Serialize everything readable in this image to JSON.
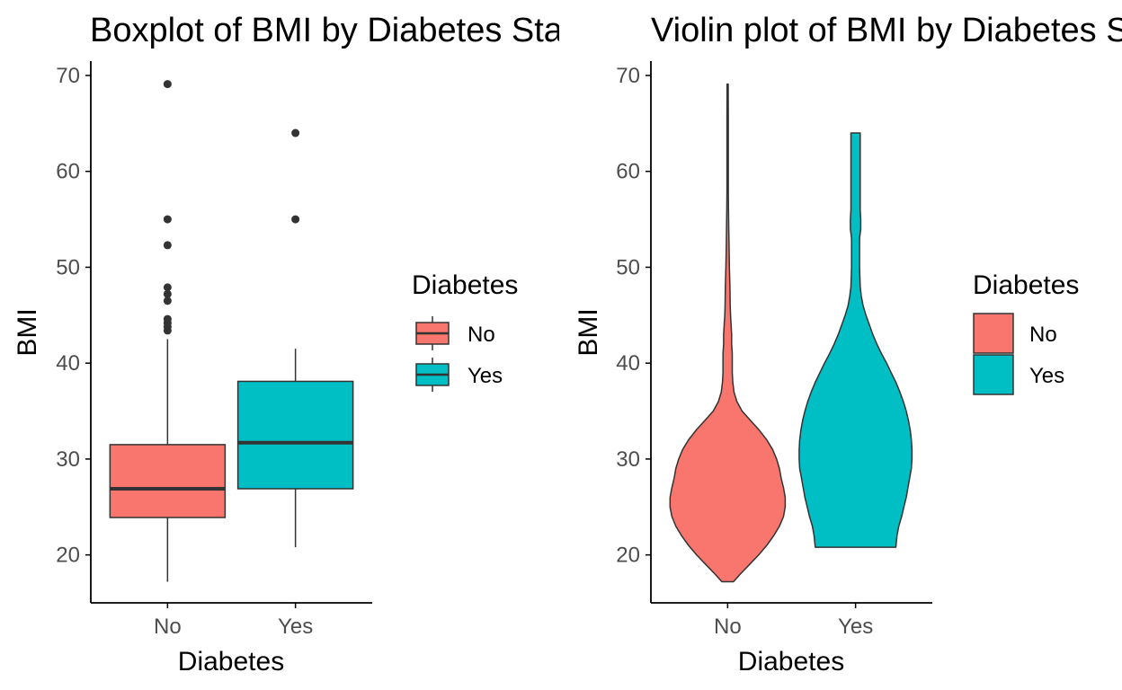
{
  "colors": {
    "no": "#F8766D",
    "yes": "#00BFC4",
    "line": "#333333",
    "axis": "#000000"
  },
  "chart_data": [
    {
      "type": "boxplot",
      "title": "Boxplot of BMI by Diabetes Status",
      "xlabel": "Diabetes",
      "ylabel": "BMI",
      "categories": [
        "No",
        "Yes"
      ],
      "ylim": [
        15,
        71.5
      ],
      "yticks": [
        20,
        30,
        40,
        50,
        60,
        70
      ],
      "grid": false,
      "legend": {
        "title": "Diabetes",
        "entries": [
          "No",
          "Yes"
        ],
        "placement": "right"
      },
      "boxes": [
        {
          "category": "No",
          "lower_whisker": 17.2,
          "q1": 23.9,
          "median": 26.9,
          "q3": 31.5,
          "upper_whisker": 42.5,
          "outliers": [
            43.4,
            43.8,
            44.2,
            44.6,
            46.5,
            47.2,
            47.9,
            52.3,
            55.0,
            69.1
          ]
        },
        {
          "category": "Yes",
          "lower_whisker": 20.8,
          "q1": 26.9,
          "median": 31.7,
          "q3": 38.1,
          "upper_whisker": 41.5,
          "outliers": [
            55.0,
            64.0
          ]
        }
      ]
    },
    {
      "type": "violin",
      "title": "Violin plot of BMI by Diabetes Status",
      "xlabel": "Diabetes",
      "ylabel": "BMI",
      "categories": [
        "No",
        "Yes"
      ],
      "ylim": [
        15,
        71.5
      ],
      "yticks": [
        20,
        30,
        40,
        50,
        60,
        70
      ],
      "grid": false,
      "legend": {
        "title": "Diabetes",
        "entries": [
          "No",
          "Yes"
        ],
        "placement": "right"
      },
      "violins": [
        {
          "category": "No",
          "min": 17.2,
          "max": 69.1,
          "density_profile": [
            [
              17.2,
              0.1
            ],
            [
              18,
              0.22
            ],
            [
              19,
              0.38
            ],
            [
              20,
              0.54
            ],
            [
              21,
              0.68
            ],
            [
              22,
              0.8
            ],
            [
              23,
              0.9
            ],
            [
              24,
              0.97
            ],
            [
              25,
              1.0
            ],
            [
              26,
              1.0
            ],
            [
              27,
              0.97
            ],
            [
              28,
              0.93
            ],
            [
              29,
              0.9
            ],
            [
              30,
              0.85
            ],
            [
              31,
              0.78
            ],
            [
              32,
              0.68
            ],
            [
              33,
              0.55
            ],
            [
              34,
              0.4
            ],
            [
              35,
              0.25
            ],
            [
              36,
              0.16
            ],
            [
              37,
              0.11
            ],
            [
              38,
              0.09
            ],
            [
              39,
              0.08
            ],
            [
              40,
              0.08
            ],
            [
              41,
              0.08
            ],
            [
              42,
              0.07
            ],
            [
              43,
              0.07
            ],
            [
              44,
              0.06
            ],
            [
              45,
              0.05
            ],
            [
              46,
              0.045
            ],
            [
              48,
              0.04
            ],
            [
              50,
              0.03
            ],
            [
              52,
              0.025
            ],
            [
              54,
              0.02
            ],
            [
              56,
              0.015
            ],
            [
              58,
              0.012
            ],
            [
              60,
              0.012
            ],
            [
              62,
              0.012
            ],
            [
              64,
              0.012
            ],
            [
              66,
              0.012
            ],
            [
              68,
              0.01
            ],
            [
              69.1,
              0.01
            ]
          ]
        },
        {
          "category": "Yes",
          "min": 20.8,
          "max": 64.0,
          "density_profile": [
            [
              20.8,
              0.7
            ],
            [
              22,
              0.72
            ],
            [
              23,
              0.75
            ],
            [
              24,
              0.8
            ],
            [
              25,
              0.84
            ],
            [
              26,
              0.88
            ],
            [
              27,
              0.91
            ],
            [
              28,
              0.94
            ],
            [
              29,
              0.97
            ],
            [
              30,
              0.98
            ],
            [
              31,
              0.98
            ],
            [
              32,
              0.97
            ],
            [
              33,
              0.95
            ],
            [
              34,
              0.92
            ],
            [
              35,
              0.88
            ],
            [
              36,
              0.83
            ],
            [
              37,
              0.77
            ],
            [
              38,
              0.7
            ],
            [
              39,
              0.62
            ],
            [
              40,
              0.54
            ],
            [
              41,
              0.45
            ],
            [
              42,
              0.37
            ],
            [
              43,
              0.3
            ],
            [
              44,
              0.24
            ],
            [
              45,
              0.18
            ],
            [
              46,
              0.13
            ],
            [
              47,
              0.1
            ],
            [
              48,
              0.08
            ],
            [
              50,
              0.07
            ],
            [
              52,
              0.07
            ],
            [
              53,
              0.07
            ],
            [
              54,
              0.09
            ],
            [
              55,
              0.09
            ],
            [
              56,
              0.08
            ],
            [
              58,
              0.08
            ],
            [
              60,
              0.08
            ],
            [
              62,
              0.08
            ],
            [
              64,
              0.08
            ]
          ]
        }
      ]
    }
  ]
}
